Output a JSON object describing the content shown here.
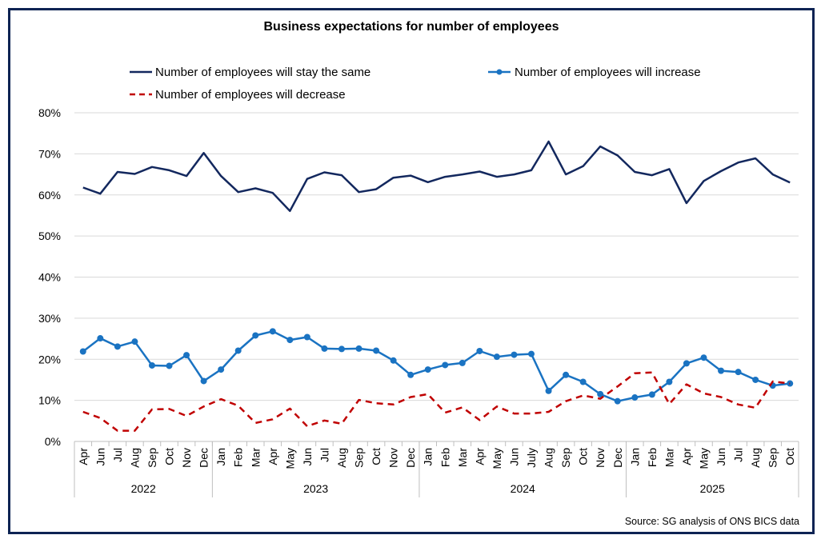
{
  "chart_data": {
    "type": "line",
    "title": "Business expectations  for number of employees",
    "source": "Source: SG analysis of ONS BICS data",
    "ylim": [
      0,
      80
    ],
    "y_ticks": [
      "0%",
      "10%",
      "20%",
      "30%",
      "40%",
      "50%",
      "60%",
      "70%",
      "80%"
    ],
    "grid": true,
    "legend_position": "top",
    "categories": [
      "Apr",
      "Jun",
      "Jul",
      "Aug",
      "Sep",
      "Oct",
      "Nov",
      "Dec",
      "Jan",
      "Feb",
      "Mar",
      "Apr",
      "May",
      "Jun",
      "Jul",
      "Aug",
      "Sep",
      "Oct",
      "Nov",
      "Dec",
      "Jan",
      "Feb",
      "Mar",
      "Apr",
      "May",
      "Jun",
      "July",
      "Aug",
      "Sep",
      "Oct",
      "Nov",
      "Dec",
      "Jan",
      "Feb",
      "Mar",
      "Apr",
      "May",
      "Jun",
      "Jul",
      "Aug",
      "Sep",
      "Oct"
    ],
    "year_groups": [
      {
        "label": "2022",
        "start": 0,
        "end": 7
      },
      {
        "label": "2023",
        "start": 8,
        "end": 19
      },
      {
        "label": "2024",
        "start": 20,
        "end": 31
      },
      {
        "label": "2025",
        "start": 32,
        "end": 41
      }
    ],
    "series": [
      {
        "name": "Number of employees will stay the same",
        "color": "#13285e",
        "style": "solid",
        "values": [
          61.8,
          60.3,
          65.6,
          65.1,
          66.8,
          66.0,
          64.6,
          70.2,
          64.6,
          60.7,
          61.6,
          60.5,
          56.1,
          63.9,
          65.5,
          64.8,
          60.7,
          61.4,
          64.2,
          64.7,
          63.1,
          64.4,
          65.0,
          65.7,
          64.4,
          65.0,
          66.0,
          73.0,
          65.0,
          67.0,
          71.8,
          69.6,
          65.6,
          64.8,
          66.3,
          58.0,
          63.4,
          65.8,
          67.9,
          68.9,
          65.0,
          63.0
        ]
      },
      {
        "name": "Number of employees will increase",
        "color": "#1a73c2",
        "style": "marker",
        "values": [
          21.9,
          25.1,
          23.1,
          24.3,
          18.5,
          18.4,
          21.0,
          14.7,
          17.5,
          22.1,
          25.8,
          26.8,
          24.7,
          25.4,
          22.6,
          22.5,
          22.6,
          22.1,
          19.7,
          16.2,
          17.5,
          18.6,
          19.1,
          22.0,
          20.6,
          21.1,
          21.3,
          12.3,
          16.2,
          14.5,
          11.5,
          9.8,
          10.7,
          11.4,
          14.5,
          19.0,
          20.4,
          17.2,
          16.9,
          15.0,
          13.6,
          14.1
        ]
      },
      {
        "name": "Number of employees will decrease",
        "color": "#c00000",
        "style": "dashed",
        "values": [
          7.2,
          5.7,
          2.6,
          2.6,
          7.8,
          7.9,
          6.2,
          8.5,
          10.3,
          8.7,
          4.5,
          5.4,
          8.0,
          3.7,
          5.1,
          4.3,
          10.1,
          9.3,
          9.0,
          10.8,
          11.5,
          7.0,
          8.3,
          5.2,
          8.5,
          6.8,
          6.8,
          7.2,
          9.8,
          11.2,
          10.4,
          13.4,
          16.6,
          16.8,
          9.1,
          13.9,
          11.7,
          10.8,
          9.0,
          8.2,
          14.6,
          14.1
        ]
      }
    ]
  }
}
